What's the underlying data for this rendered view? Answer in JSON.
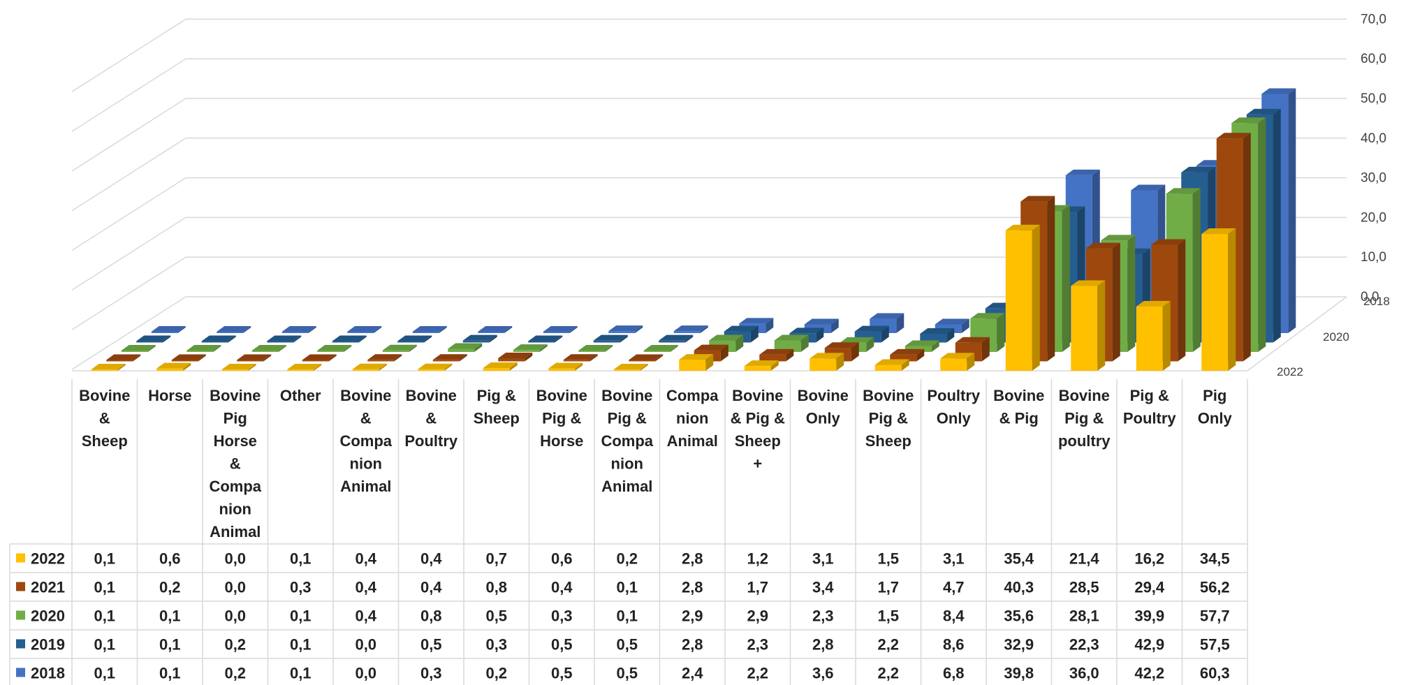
{
  "chart_data": {
    "type": "bar",
    "variant": "3d-clustered-with-data-table",
    "title": "",
    "ylim": [
      0,
      70
    ],
    "yticks": [
      "0,0",
      "10,0",
      "20,0",
      "30,0",
      "40,0",
      "50,0",
      "60,0",
      "70,0"
    ],
    "depth_labels": [
      "2018",
      "2020",
      "2022"
    ],
    "grid": true,
    "legend": "data-table-left",
    "categories": [
      [
        "Bovine",
        "&",
        "Sheep"
      ],
      [
        "Horse"
      ],
      [
        "Bovine",
        "Pig",
        "Horse",
        "&",
        "Compa",
        "nion",
        "Animal"
      ],
      [
        "Other"
      ],
      [
        "Bovine",
        "&",
        "Compa",
        "nion",
        "Animal"
      ],
      [
        "Bovine",
        "&",
        "Poultry"
      ],
      [
        "Pig &",
        "Sheep"
      ],
      [
        "Bovine",
        "Pig &",
        "Horse"
      ],
      [
        "Bovine",
        "Pig &",
        "Compa",
        "nion",
        "Animal"
      ],
      [
        "Compa",
        "nion",
        "Animal"
      ],
      [
        "Bovine",
        "& Pig &",
        "Sheep",
        "+"
      ],
      [
        "Bovine",
        "Only"
      ],
      [
        "Bovine",
        "Pig &",
        "Sheep"
      ],
      [
        "Poultry",
        "Only"
      ],
      [
        "Bovine",
        "& Pig"
      ],
      [
        "Bovine",
        "Pig &",
        "poultry"
      ],
      [
        "Pig &",
        "Poultry"
      ],
      [
        "Pig",
        "Only"
      ]
    ],
    "series": [
      {
        "name": "2022",
        "color": "#FFC000",
        "values": [
          "0,1",
          "0,6",
          "0,0",
          "0,1",
          "0,4",
          "0,4",
          "0,7",
          "0,6",
          "0,2",
          "2,8",
          "1,2",
          "3,1",
          "1,5",
          "3,1",
          "35,4",
          "21,4",
          "16,2",
          "34,5"
        ]
      },
      {
        "name": "2021",
        "color": "#9E480E",
        "values": [
          "0,1",
          "0,2",
          "0,0",
          "0,3",
          "0,4",
          "0,4",
          "0,8",
          "0,4",
          "0,1",
          "2,8",
          "1,7",
          "3,4",
          "1,7",
          "4,7",
          "40,3",
          "28,5",
          "29,4",
          "56,2"
        ]
      },
      {
        "name": "2020",
        "color": "#70AD47",
        "values": [
          "0,1",
          "0,1",
          "0,0",
          "0,1",
          "0,4",
          "0,8",
          "0,5",
          "0,3",
          "0,1",
          "2,9",
          "2,9",
          "2,3",
          "1,5",
          "8,4",
          "35,6",
          "28,1",
          "39,9",
          "57,7"
        ]
      },
      {
        "name": "2019",
        "color": "#255E91",
        "values": [
          "0,1",
          "0,1",
          "0,2",
          "0,1",
          "0,0",
          "0,5",
          "0,3",
          "0,5",
          "0,5",
          "2,8",
          "2,3",
          "2,8",
          "2,2",
          "8,6",
          "32,9",
          "22,3",
          "42,9",
          "57,5"
        ]
      },
      {
        "name": "2018",
        "color": "#4472C4",
        "values": [
          "0,1",
          "0,1",
          "0,2",
          "0,1",
          "0,0",
          "0,3",
          "0,2",
          "0,5",
          "0,5",
          "2,4",
          "2,2",
          "3,6",
          "2,2",
          "6,8",
          "39,8",
          "36,0",
          "42,2",
          "60,3"
        ]
      }
    ]
  }
}
